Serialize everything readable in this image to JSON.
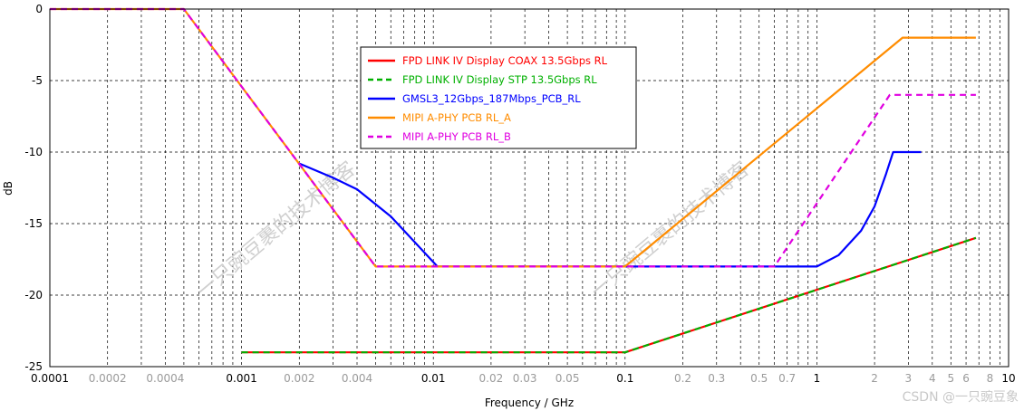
{
  "chart_data": {
    "type": "line",
    "xlabel": "Frequency / GHz",
    "ylabel": "dB",
    "xscale": "log",
    "xlim": [
      0.0001,
      10
    ],
    "ylim": [
      -25,
      0
    ],
    "grid": true,
    "legend_position": "top-center",
    "x_ticks_major": [
      "0.0001",
      "0.001",
      "0.01",
      "0.1",
      "1",
      "10"
    ],
    "x_ticks_minor": [
      {
        "v": 0.0002,
        "label": "0.0002"
      },
      {
        "v": 0.0004,
        "label": "0.0004"
      },
      {
        "v": 0.002,
        "label": "0.002"
      },
      {
        "v": 0.004,
        "label": "0.004"
      },
      {
        "v": 0.02,
        "label": "0.02"
      },
      {
        "v": 0.03,
        "label": "0.03"
      },
      {
        "v": 0.05,
        "label": "0.05"
      },
      {
        "v": 0.2,
        "label": "0.2"
      },
      {
        "v": 0.3,
        "label": "0.3"
      },
      {
        "v": 0.5,
        "label": "0.5"
      },
      {
        "v": 0.7,
        "label": "0.7"
      },
      {
        "v": 2,
        "label": "2"
      },
      {
        "v": 3,
        "label": "3"
      },
      {
        "v": 4,
        "label": "4"
      },
      {
        "v": 5,
        "label": "5"
      },
      {
        "v": 6,
        "label": "6"
      },
      {
        "v": 8,
        "label": "8"
      }
    ],
    "y_ticks": [
      0,
      -5,
      -10,
      -15,
      -20,
      -25
    ],
    "series": [
      {
        "name": "FPD LINK IV Display COAX 13.5Gbps RL",
        "color": "#ff0000",
        "dash": "solid",
        "points": [
          [
            0.001,
            -24
          ],
          [
            0.1,
            -24
          ],
          [
            6.75,
            -16
          ]
        ]
      },
      {
        "name": "FPD LINK IV Display STP 13.5Gbps RL",
        "color": "#00b000",
        "dash": "dashed",
        "points": [
          [
            0.001,
            -24
          ],
          [
            0.1,
            -24
          ],
          [
            6.75,
            -16
          ]
        ]
      },
      {
        "name": "GMSL3_12Gbps_187Mbps_PCB_RL",
        "color": "#0000ff",
        "dash": "solid",
        "points": [
          [
            0.002,
            -10.8
          ],
          [
            0.003,
            -11.8
          ],
          [
            0.004,
            -12.6
          ],
          [
            0.006,
            -14.5
          ],
          [
            0.008,
            -16.3
          ],
          [
            0.0105,
            -18
          ],
          [
            1.0,
            -18
          ],
          [
            1.3,
            -17.2
          ],
          [
            1.7,
            -15.5
          ],
          [
            2.0,
            -13.8
          ],
          [
            2.3,
            -11.5
          ],
          [
            2.5,
            -10
          ],
          [
            3.5,
            -10
          ]
        ]
      },
      {
        "name": "MIPI A-PHY PCB RL_A",
        "color": "#ff8c00",
        "dash": "solid",
        "points": [
          [
            0.0001,
            0
          ],
          [
            0.0005,
            0
          ],
          [
            0.005,
            -18
          ],
          [
            0.1,
            -18
          ],
          [
            2.8,
            -2
          ],
          [
            6.75,
            -2
          ]
        ]
      },
      {
        "name": "MIPI A-PHY PCB RL_B",
        "color": "#e000e0",
        "dash": "dashed",
        "points": [
          [
            0.0001,
            0
          ],
          [
            0.0005,
            0
          ],
          [
            0.005,
            -18
          ],
          [
            0.6,
            -18
          ],
          [
            2.4,
            -6
          ],
          [
            6.75,
            -6
          ]
        ]
      }
    ]
  },
  "watermark": {
    "text_1": "一只豌豆裹的技术博客",
    "text_2": "一只豌豆裹的技术博客",
    "corner": "CSDN @一只豌豆象"
  }
}
